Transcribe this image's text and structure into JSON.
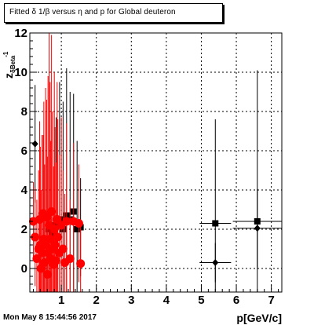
{
  "title": "Fitted δ 1/β versus η and p for Global deuteron",
  "footer": "Mon May  8 15:44:56 2017",
  "chart_data": {
    "type": "scatter",
    "xlabel": "p[GeV/c]",
    "ylabel_main": "z",
    "ylabel_sub": "δBeta",
    "ylabel_sup": "-1",
    "xlim": [
      0.1,
      7.3
    ],
    "ylim": [
      -1.2,
      12
    ],
    "x_ticks": [
      "1",
      "2",
      "3",
      "4",
      "5",
      "6",
      "7"
    ],
    "y_ticks": [
      "0",
      "2",
      "4",
      "6",
      "8",
      "10",
      "12"
    ],
    "grid": true,
    "colors": {
      "black": "#000000",
      "red": "#ff0000"
    },
    "series": [
      {
        "marker": "square",
        "color": "black",
        "points": [
          {
            "x": 0.55,
            "y": 1.5,
            "dy": 6.5
          },
          {
            "x": 0.65,
            "y": 2.0,
            "dy": 8.0
          },
          {
            "x": 0.75,
            "y": 1.8,
            "dy": 6.0
          },
          {
            "x": 0.85,
            "y": 2.2,
            "dy": 5.5
          },
          {
            "x": 0.95,
            "y": 2.5,
            "dy": 7.0
          },
          {
            "x": 1.05,
            "y": 2.0,
            "dy": 6.5
          },
          {
            "x": 1.15,
            "y": 2.7,
            "dy": 7.5
          },
          {
            "x": 1.25,
            "y": 2.5,
            "dy": 6.5
          },
          {
            "x": 1.35,
            "y": 2.9,
            "dy": 6.0
          },
          {
            "x": 1.45,
            "y": 2.0,
            "dy": 4.5
          },
          {
            "x": 1.55,
            "y": 2.1,
            "dy": 2.5
          },
          {
            "x": 5.4,
            "y": 2.3,
            "dy": 5.3,
            "dx": 0.45
          },
          {
            "x": 6.6,
            "y": 2.4,
            "dy": 7.7,
            "dx": 0.7
          }
        ]
      },
      {
        "marker": "diamond",
        "color": "black",
        "points": [
          {
            "x": 0.25,
            "y": 6.35,
            "dy": 3.0
          },
          {
            "x": 5.4,
            "y": 0.3,
            "dy": 1.0,
            "dx": 0.45
          },
          {
            "x": 6.6,
            "y": 2.05,
            "dy": 2.0,
            "dx": 0.7
          }
        ]
      },
      {
        "marker": "circle",
        "color": "red",
        "points": [
          {
            "x": 0.2,
            "y": 2.4,
            "dy": 2.0
          },
          {
            "x": 0.25,
            "y": 1.6,
            "dy": 2.5
          },
          {
            "x": 0.3,
            "y": 0.5,
            "dy": 3.0
          },
          {
            "x": 0.35,
            "y": 1.0,
            "dy": 4.0
          },
          {
            "x": 0.38,
            "y": 2.5,
            "dy": 5.0
          },
          {
            "x": 0.4,
            "y": 1.2,
            "dy": 5.0
          },
          {
            "x": 0.42,
            "y": 0.0,
            "dy": 4.0
          },
          {
            "x": 0.45,
            "y": 0.8,
            "dy": 6.0
          },
          {
            "x": 0.48,
            "y": 2.8,
            "dy": 4.0
          },
          {
            "x": 0.5,
            "y": 1.5,
            "dy": 7.0
          },
          {
            "x": 0.52,
            "y": 0.3,
            "dy": 5.0
          },
          {
            "x": 0.55,
            "y": 1.2,
            "dy": 8.0
          },
          {
            "x": 0.58,
            "y": 2.6,
            "dy": 6.0
          },
          {
            "x": 0.6,
            "y": -0.3,
            "dy": 6.0
          },
          {
            "x": 0.62,
            "y": 0.8,
            "dy": 9.0
          },
          {
            "x": 0.65,
            "y": 2.2,
            "dy": 10.0
          },
          {
            "x": 0.68,
            "y": 1.5,
            "dy": 8.0
          },
          {
            "x": 0.7,
            "y": 0.5,
            "dy": 6.0
          },
          {
            "x": 0.72,
            "y": 2.9,
            "dy": 9.0
          },
          {
            "x": 0.75,
            "y": 1.0,
            "dy": 7.0
          },
          {
            "x": 0.78,
            "y": 0.2,
            "dy": 5.0
          },
          {
            "x": 0.8,
            "y": 2.0,
            "dy": 8.0
          },
          {
            "x": 0.82,
            "y": 1.2,
            "dy": 6.0
          },
          {
            "x": 0.85,
            "y": 0.4,
            "dy": 5.0
          },
          {
            "x": 0.88,
            "y": 2.5,
            "dy": 7.0
          },
          {
            "x": 0.9,
            "y": 1.6,
            "dy": 6.0
          },
          {
            "x": 0.95,
            "y": 0.8,
            "dy": 5.0
          },
          {
            "x": 1.0,
            "y": 2.2,
            "dy": 5.5
          },
          {
            "x": 1.05,
            "y": 1.0,
            "dy": 4.0
          },
          {
            "x": 1.1,
            "y": 0.3,
            "dy": 3.5
          },
          {
            "x": 1.15,
            "y": 2.4,
            "dy": 5.0
          },
          {
            "x": 1.25,
            "y": 0.5,
            "dy": 3.0
          },
          {
            "x": 1.35,
            "y": 2.4,
            "dy": 4.0
          },
          {
            "x": 1.5,
            "y": 2.3,
            "dy": 3.0
          },
          {
            "x": 1.55,
            "y": 0.25,
            "dy": 2.0
          }
        ]
      }
    ]
  }
}
